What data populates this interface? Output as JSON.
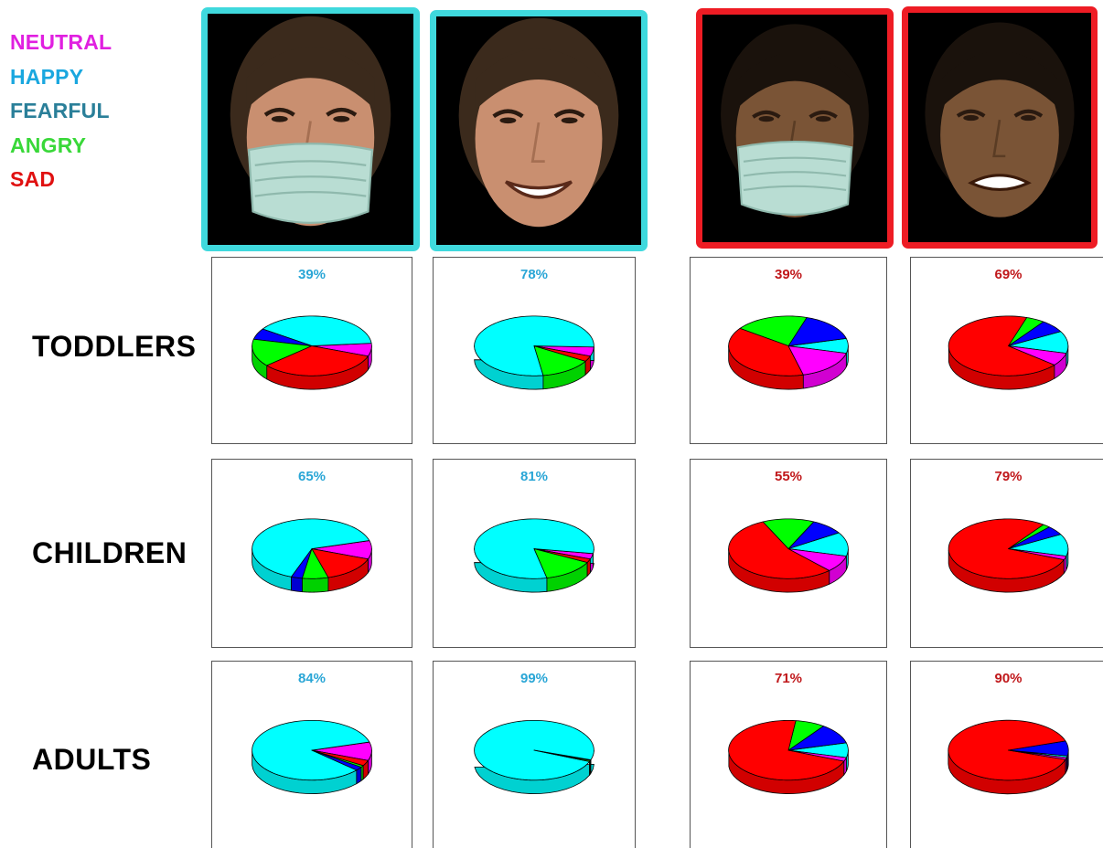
{
  "legend": [
    {
      "label": "NEUTRAL",
      "color": "#e020e0"
    },
    {
      "label": "HAPPY",
      "color": "#1aa7df"
    },
    {
      "label": "FEARFUL",
      "color": "#2a7f99"
    },
    {
      "label": "ANGRY",
      "color": "#39d839"
    },
    {
      "label": "SAD",
      "color": "#e01010"
    }
  ],
  "pie_colors": {
    "happy": "#00ffff",
    "fearful": "#0000ff",
    "angry": "#00ff00",
    "sad": "#ff0000",
    "neutral": "#ff00ff"
  },
  "faces": [
    {
      "name": "face-happy-masked",
      "icon": "woman-smiling-with-mask",
      "frame_color": "#3fd9dd"
    },
    {
      "name": "face-happy-unmasked",
      "icon": "woman-smiling",
      "frame_color": "#3fd9dd"
    },
    {
      "name": "face-sad-masked",
      "icon": "woman-crying-with-mask",
      "frame_color": "#ee1c24"
    },
    {
      "name": "face-sad-unmasked",
      "icon": "woman-crying",
      "frame_color": "#ee1c24"
    }
  ],
  "rows": [
    "TODDLERS",
    "CHILDREN",
    "ADULTS"
  ],
  "chart_data": {
    "type": "pie",
    "emotions": [
      "happy",
      "fearful",
      "angry",
      "sad",
      "neutral"
    ],
    "percent_color_happy": "#2aa6d6",
    "percent_color_sad": "#c0181b",
    "grid": [
      [
        {
          "label": "39%",
          "target": "happy",
          "values": {
            "happy": 39,
            "fearful": 6,
            "angry": 15,
            "sad": 33,
            "neutral": 7
          }
        },
        {
          "label": "78%",
          "target": "happy",
          "values": {
            "happy": 78,
            "fearful": 0,
            "angry": 14,
            "sad": 3,
            "neutral": 5
          }
        },
        {
          "label": "39%",
          "target": "sad",
          "values": {
            "happy": 8,
            "fearful": 16,
            "angry": 20,
            "sad": 39,
            "neutral": 17
          }
        },
        {
          "label": "69%",
          "target": "sad",
          "values": {
            "happy": 12,
            "fearful": 7,
            "angry": 5,
            "sad": 69,
            "neutral": 7
          }
        }
      ],
      [
        {
          "label": "65%",
          "target": "happy",
          "values": {
            "happy": 65,
            "fearful": 3,
            "angry": 7,
            "sad": 15,
            "neutral": 10
          }
        },
        {
          "label": "81%",
          "target": "happy",
          "values": {
            "happy": 81,
            "fearful": 0,
            "angry": 14,
            "sad": 2,
            "neutral": 3
          }
        },
        {
          "label": "55%",
          "target": "sad",
          "values": {
            "happy": 13,
            "fearful": 9,
            "angry": 14,
            "sad": 55,
            "neutral": 9
          }
        },
        {
          "label": "79%",
          "target": "sad",
          "values": {
            "happy": 12,
            "fearful": 5,
            "angry": 2,
            "sad": 79,
            "neutral": 2
          }
        }
      ],
      [
        {
          "label": "84%",
          "target": "happy",
          "values": {
            "happy": 84,
            "fearful": 2,
            "angry": 1,
            "sad": 3,
            "neutral": 10
          }
        },
        {
          "label": "99%",
          "target": "happy",
          "values": {
            "happy": 99,
            "fearful": 0,
            "angry": 0.6,
            "sad": 0,
            "neutral": 0.4
          }
        },
        {
          "label": "71%",
          "target": "sad",
          "values": {
            "happy": 8,
            "fearful": 11,
            "angry": 8,
            "sad": 71,
            "neutral": 2
          }
        },
        {
          "label": "90%",
          "target": "sad",
          "values": {
            "happy": 1,
            "fearful": 8,
            "angry": 0,
            "sad": 90,
            "neutral": 1
          }
        }
      ]
    ]
  }
}
